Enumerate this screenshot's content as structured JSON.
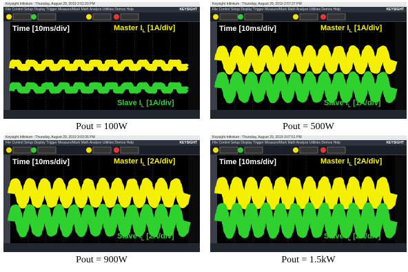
{
  "menu": "File Control Setup Display Trigger Measure/Mark Math Analyze Utilities Demos Help",
  "brand": "KEYSIGHT",
  "panels": [
    {
      "header": "Keysight Infiniium : Thursday, August 29, 2019 2:51:20 PM",
      "time_label": "Time [10ms/div]",
      "master": {
        "text": "Master I",
        "sub": "L",
        "scale": "[1A/div]"
      },
      "slave": {
        "text": "Slave I",
        "sub": "L",
        "scale": "[1A/div]"
      },
      "caption": "Pout = 100W"
    },
    {
      "header": "Keysight Infiniium : Thursday, August 29, 2019 2:57:37 PM",
      "time_label": "Time [10ms/div]",
      "master": {
        "text": "Master I",
        "sub": "L",
        "scale": "[1A/div]"
      },
      "slave": {
        "text": "Slave I",
        "sub": "L",
        "scale": "[1A/div]"
      },
      "caption": "Pout = 500W"
    },
    {
      "header": "Keysight Infiniium : Thursday, August 29, 2019 3:03:35 PM",
      "time_label": "Time [10ms/div]",
      "master": {
        "text": "Master I",
        "sub": "L",
        "scale": "[2A/div]"
      },
      "slave": {
        "text": "Slave I",
        "sub": "L",
        "scale": "[2A/div]"
      },
      "caption": "Pout = 900W"
    },
    {
      "header": "Keysight Infiniium : Thursday, August 29, 2019 3:07:51 PM",
      "time_label": "Time [10ms/div]",
      "master": {
        "text": "Master I",
        "sub": "L",
        "scale": "[2A/div]"
      },
      "slave": {
        "text": "Slave I",
        "sub": "L",
        "scale": "[2A/div]"
      },
      "caption": "Pout = 1.5kW"
    }
  ]
}
